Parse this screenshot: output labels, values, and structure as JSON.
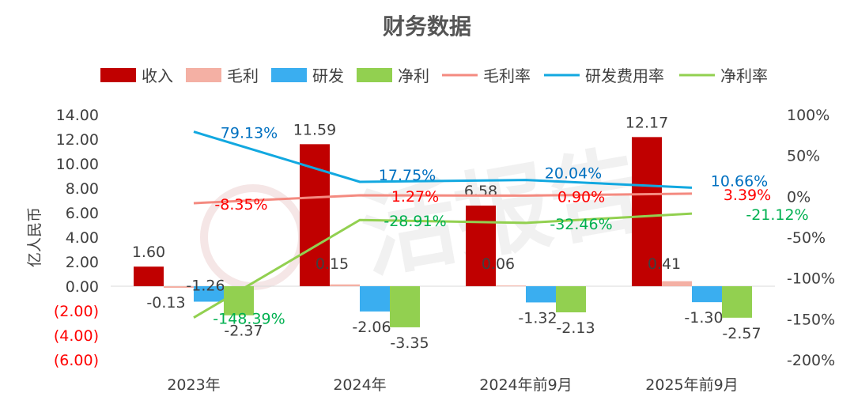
{
  "chart_data": {
    "type": "bar",
    "title": "财务数据",
    "ylabel": "亿人民币",
    "categories": [
      "2023年",
      "2024年",
      "2024年前9月",
      "2025年前9月"
    ],
    "ylim": [
      -6,
      14
    ],
    "y2lim": [
      -200,
      100
    ],
    "y_ticks": [
      "14.00",
      "12.00",
      "10.00",
      "8.00",
      "6.00",
      "4.00",
      "2.00",
      "0.00",
      "(2.00)",
      "(4.00)",
      "(6.00)"
    ],
    "y2_ticks": [
      "100%",
      "50%",
      "0%",
      "-50%",
      "-100%",
      "-150%",
      "-200%"
    ],
    "legend_position": "top",
    "bar_series": [
      {
        "name": "收入",
        "color": "#C00000",
        "values": [
          1.6,
          11.59,
          6.58,
          12.17
        ],
        "labels": [
          "1.60",
          "11.59",
          "6.58",
          "12.17"
        ]
      },
      {
        "name": "毛利",
        "color": "#F4B0A4",
        "values": [
          -0.13,
          0.15,
          0.06,
          0.41
        ],
        "labels": [
          "-0.13",
          "0.15",
          "0.06",
          "0.41"
        ]
      },
      {
        "name": "研发",
        "color": "#3AAEF0",
        "values": [
          -1.26,
          -2.06,
          -1.32,
          -1.3
        ],
        "labels": [
          "-1.26",
          "-2.06",
          "-1.32",
          "-1.30"
        ]
      },
      {
        "name": "净利",
        "color": "#92D050",
        "values": [
          -2.37,
          -3.35,
          -2.13,
          -2.57
        ],
        "labels": [
          "-2.37",
          "-3.35",
          "-2.13",
          "-2.57"
        ]
      }
    ],
    "line_series": [
      {
        "name": "毛利率",
        "color": "#F48A80",
        "label_color": "#FF0000",
        "values": [
          -8.35,
          1.27,
          0.9,
          3.39
        ],
        "labels": [
          "-8.35%",
          "1.27%",
          "0.90%",
          "3.39%"
        ]
      },
      {
        "name": "研发费用率",
        "color": "#12A8E0",
        "label_color": "#0070C0",
        "values": [
          79.13,
          17.75,
          20.04,
          10.66
        ],
        "labels": [
          "79.13%",
          "17.75%",
          "20.04%",
          "10.66%"
        ]
      },
      {
        "name": "净利率",
        "color": "#92D050",
        "label_color": "#00B050",
        "values": [
          -148.39,
          -28.91,
          -32.46,
          -21.12
        ],
        "labels": [
          "-148.39%",
          "-28.91%",
          "-32.46%",
          "-21.12%"
        ]
      }
    ],
    "negative_tick_color": "#FF0000",
    "grid": false,
    "watermark": "活报告"
  }
}
